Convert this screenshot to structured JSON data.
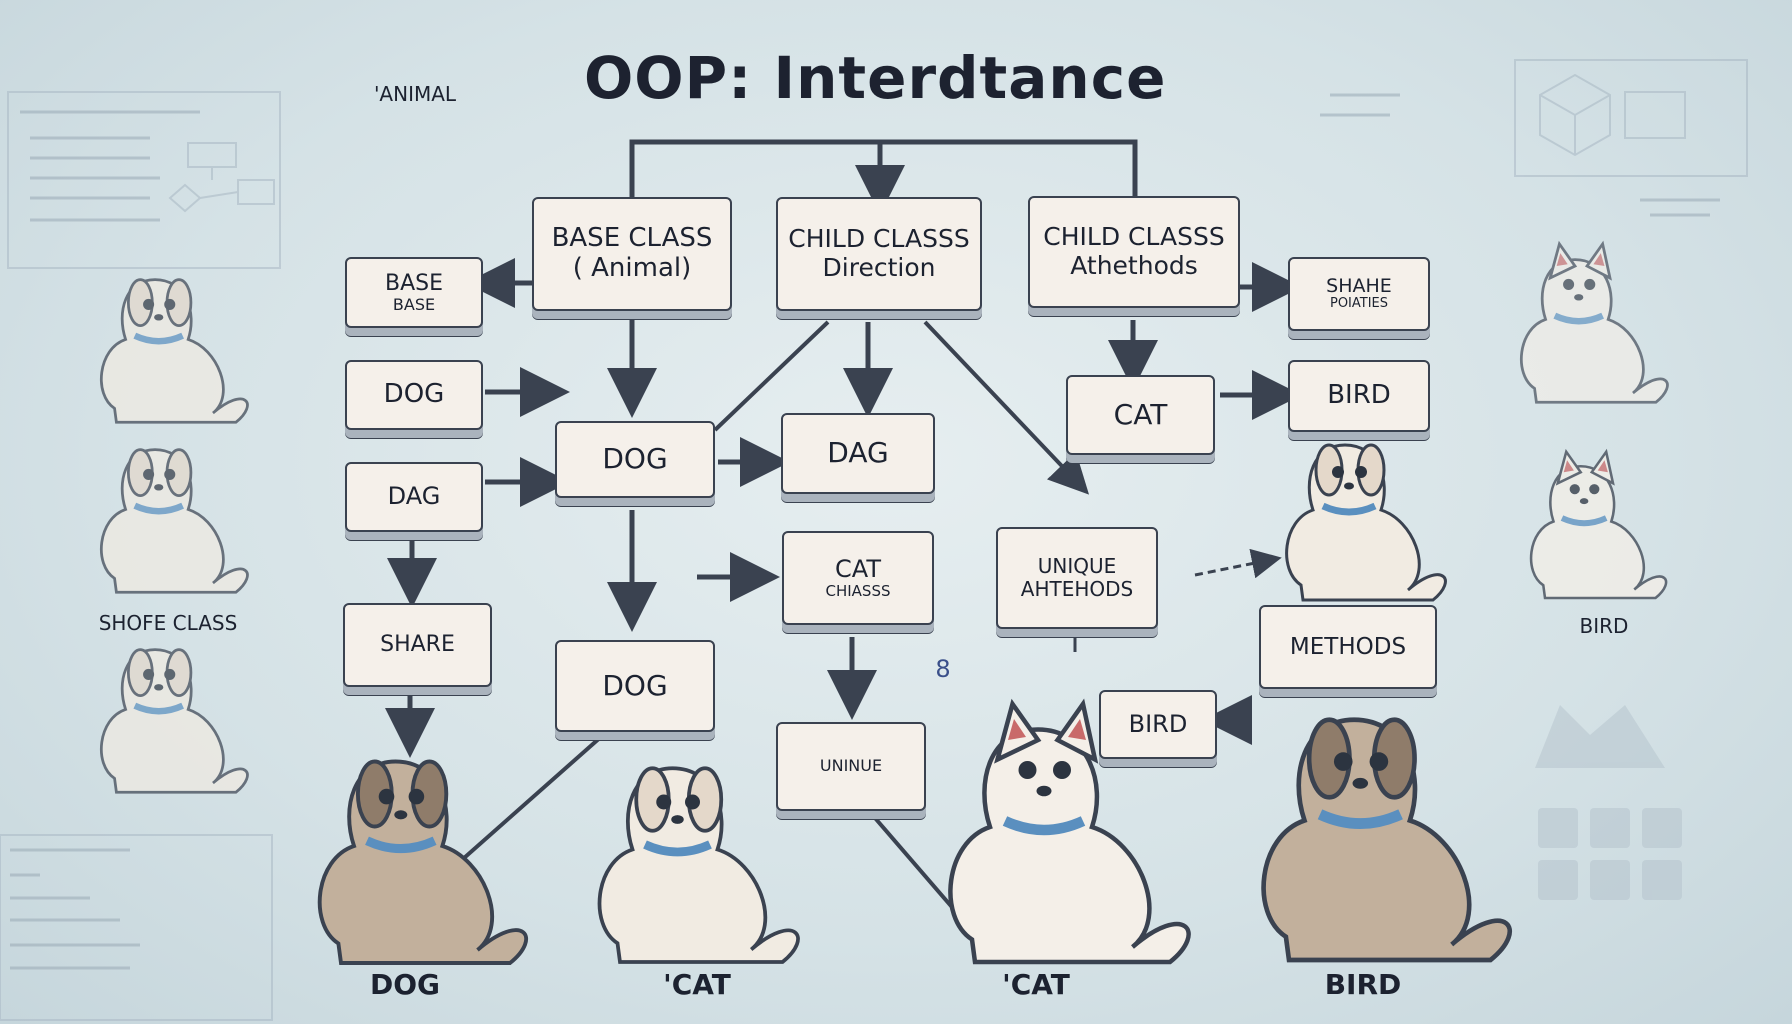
{
  "title": "OOP: Interdtance",
  "top_left_label": "'ANIMAL",
  "boxes": {
    "base_class_animal": {
      "line1": "BASE CLASS",
      "line2": "( Animal)"
    },
    "child_direction": {
      "line1": "CHILD CLASSS",
      "line2": "Direction"
    },
    "child_attethods": {
      "line1": "CHILD CLASSS",
      "line2": "Athethods"
    },
    "base_base": {
      "line1": "BASE",
      "line2": "BASE"
    },
    "share_poiaties": {
      "line1": "SHAHE",
      "line2": "POIATIES"
    },
    "dog_left": "DOG",
    "dog_center": "DOG",
    "dag_center": "DAG",
    "cat_right": "CAT",
    "bird_right": "BIRD",
    "dag_left": "DAG",
    "cat_mid": {
      "line1": "CAT",
      "line2": "CHIASSS"
    },
    "unique_ahtehods": {
      "line1": "UNIQUE",
      "line2": "AHTEHODS"
    },
    "share": "SHARE",
    "dog_low": "DOG",
    "methods": "METHODS",
    "bird_low": "BIRD",
    "unique_low": "UNINUE"
  },
  "glyph_small": "8",
  "side_labels": {
    "shore_class": "SHOFE CLASS",
    "bird_side": "BIRD"
  },
  "bottom_labels": [
    "DOG",
    "'CAT",
    "'CAT",
    "BIRD"
  ],
  "colors": {
    "box_fill": "#f5f0ea",
    "box_border": "#3a4250",
    "arrow": "#3a4250",
    "collar": "#5a8fbf",
    "dog_light": "#f1ebe2",
    "dog_dark": "#c2b09c",
    "background": "#dde8eb"
  }
}
